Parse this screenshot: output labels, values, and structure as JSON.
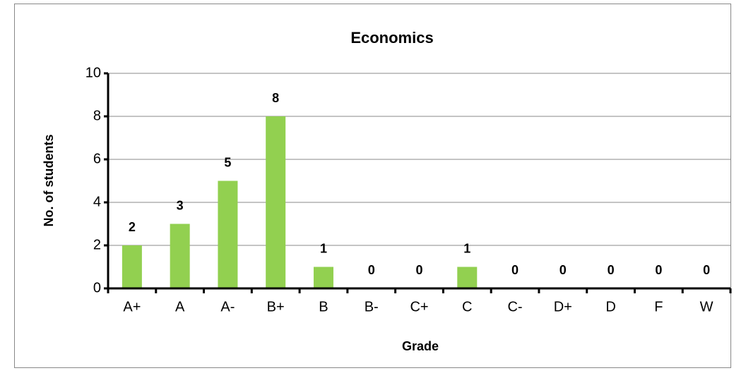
{
  "chart_data": {
    "type": "bar",
    "title": "Economics",
    "x_label": "Grade",
    "y_label": "No. of students",
    "categories": [
      "A+",
      "A",
      "A-",
      "B+",
      "B",
      "B-",
      "C+",
      "C",
      "C-",
      "D+",
      "D",
      "F",
      "W"
    ],
    "values": [
      2,
      3,
      5,
      8,
      1,
      0,
      0,
      1,
      0,
      0,
      0,
      0,
      0
    ],
    "color": "#92d050",
    "ylim": [
      0,
      10
    ],
    "yticks": [
      0,
      2,
      4,
      6,
      8,
      10
    ],
    "grid": true
  }
}
